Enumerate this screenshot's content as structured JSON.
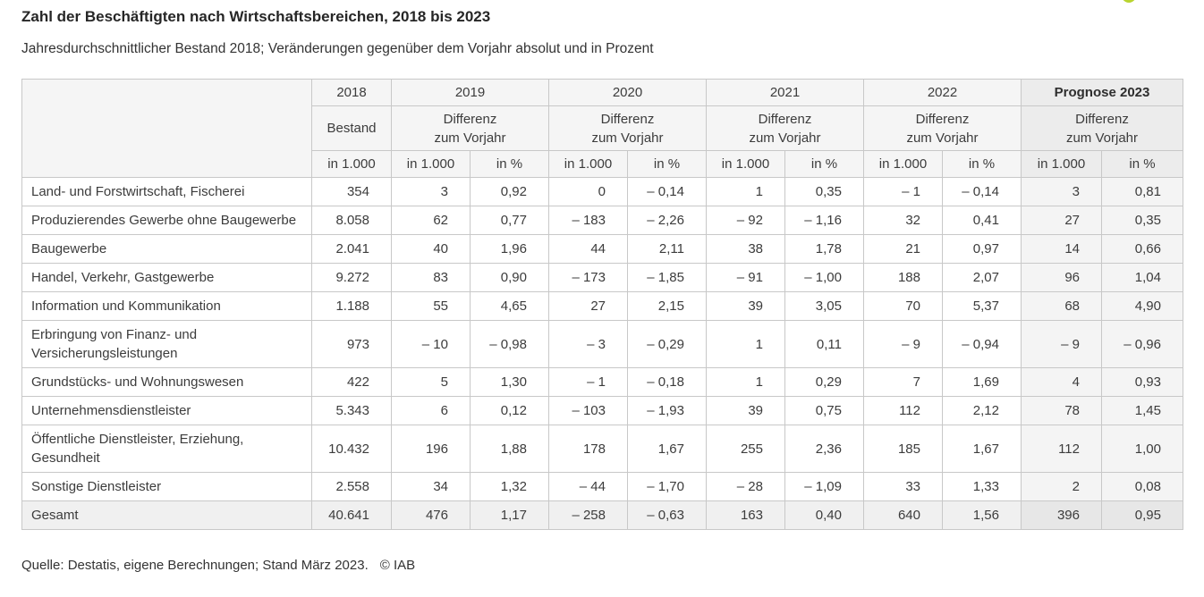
{
  "page": {
    "title": "Zahl der Beschäftigten nach Wirtschaftsbereichen, 2018 bis 2023",
    "subtitle": "Jahresdurchschnittlicher Bestand 2018; Veränderungen gegenüber dem Vorjahr absolut und in Prozent",
    "source_note": "Quelle: Destatis, eigene Berechnungen; Stand März 2023.",
    "copyright": "© IAB",
    "logo_color": "#b9d42f"
  },
  "chart_data": {
    "type": "table",
    "title": "Zahl der Beschäftigten nach Wirtschaftsbereichen, 2018 bis 2023",
    "subtitle": "Jahresdurchschnittlicher Bestand 2018; Veränderungen gegenüber dem Vorjahr absolut und in Prozent",
    "column_groups": [
      {
        "year": "2018",
        "header_lines": [
          "Bestand"
        ],
        "units": [
          "in 1.000"
        ],
        "highlight": false
      },
      {
        "year": "2019",
        "header_lines": [
          "Differenz",
          "zum Vorjahr"
        ],
        "units": [
          "in 1.000",
          "in %"
        ],
        "highlight": false
      },
      {
        "year": "2020",
        "header_lines": [
          "Differenz",
          "zum Vorjahr"
        ],
        "units": [
          "in 1.000",
          "in %"
        ],
        "highlight": false
      },
      {
        "year": "2021",
        "header_lines": [
          "Differenz",
          "zum Vorjahr"
        ],
        "units": [
          "in 1.000",
          "in %"
        ],
        "highlight": false
      },
      {
        "year": "2022",
        "header_lines": [
          "Differenz",
          "zum Vorjahr"
        ],
        "units": [
          "in 1.000",
          "in %"
        ],
        "highlight": false
      },
      {
        "year": "Prognose 2023",
        "header_lines": [
          "Differenz",
          "zum Vorjahr"
        ],
        "units": [
          "in 1.000",
          "in %"
        ],
        "highlight": true
      }
    ],
    "rows": [
      {
        "label": "Land- und Forstwirtschaft, Fischerei",
        "is_total": false,
        "values": [
          "354",
          "3",
          "0,92",
          "0",
          "– 0,14",
          "1",
          "0,35",
          "– 1",
          "– 0,14",
          "3",
          "0,81"
        ]
      },
      {
        "label": "Produzierendes Gewerbe ohne Baugewerbe",
        "is_total": false,
        "values": [
          "8.058",
          "62",
          "0,77",
          "– 183",
          "– 2,26",
          "– 92",
          "– 1,16",
          "32",
          "0,41",
          "27",
          "0,35"
        ]
      },
      {
        "label": "Baugewerbe",
        "is_total": false,
        "values": [
          "2.041",
          "40",
          "1,96",
          "44",
          "2,11",
          "38",
          "1,78",
          "21",
          "0,97",
          "14",
          "0,66"
        ]
      },
      {
        "label": "Handel, Verkehr, Gastgewerbe",
        "is_total": false,
        "values": [
          "9.272",
          "83",
          "0,90",
          "– 173",
          "– 1,85",
          "– 91",
          "– 1,00",
          "188",
          "2,07",
          "96",
          "1,04"
        ]
      },
      {
        "label": "Information und Kommunikation",
        "is_total": false,
        "values": [
          "1.188",
          "55",
          "4,65",
          "27",
          "2,15",
          "39",
          "3,05",
          "70",
          "5,37",
          "68",
          "4,90"
        ]
      },
      {
        "label": "Erbringung von Finanz- und Versicherungsleistungen",
        "is_total": false,
        "values": [
          "973",
          "– 10",
          "– 0,98",
          "– 3",
          "– 0,29",
          "1",
          "0,11",
          "– 9",
          "– 0,94",
          "– 9",
          "– 0,96"
        ]
      },
      {
        "label": "Grundstücks- und Wohnungswesen",
        "is_total": false,
        "values": [
          "422",
          "5",
          "1,30",
          "– 1",
          "– 0,18",
          "1",
          "0,29",
          "7",
          "1,69",
          "4",
          "0,93"
        ]
      },
      {
        "label": "Unternehmensdienstleister",
        "is_total": false,
        "values": [
          "5.343",
          "6",
          "0,12",
          "– 103",
          "– 1,93",
          "39",
          "0,75",
          "112",
          "2,12",
          "78",
          "1,45"
        ]
      },
      {
        "label": "Öffentliche Dienstleister, Erziehung, Gesundheit",
        "is_total": false,
        "values": [
          "10.432",
          "196",
          "1,88",
          "178",
          "1,67",
          "255",
          "2,36",
          "185",
          "1,67",
          "112",
          "1,00"
        ]
      },
      {
        "label": "Sonstige Dienstleister",
        "is_total": false,
        "values": [
          "2.558",
          "34",
          "1,32",
          "– 44",
          "– 1,70",
          "– 28",
          "– 1,09",
          "33",
          "1,33",
          "2",
          "0,08"
        ]
      },
      {
        "label": "Gesamt",
        "is_total": true,
        "values": [
          "40.641",
          "476",
          "1,17",
          "– 258",
          "– 0,63",
          "163",
          "0,40",
          "640",
          "1,56",
          "396",
          "0,95"
        ]
      }
    ],
    "source": "Quelle: Destatis, eigene Berechnungen; Stand März 2023.",
    "copyright": "© IAB"
  }
}
